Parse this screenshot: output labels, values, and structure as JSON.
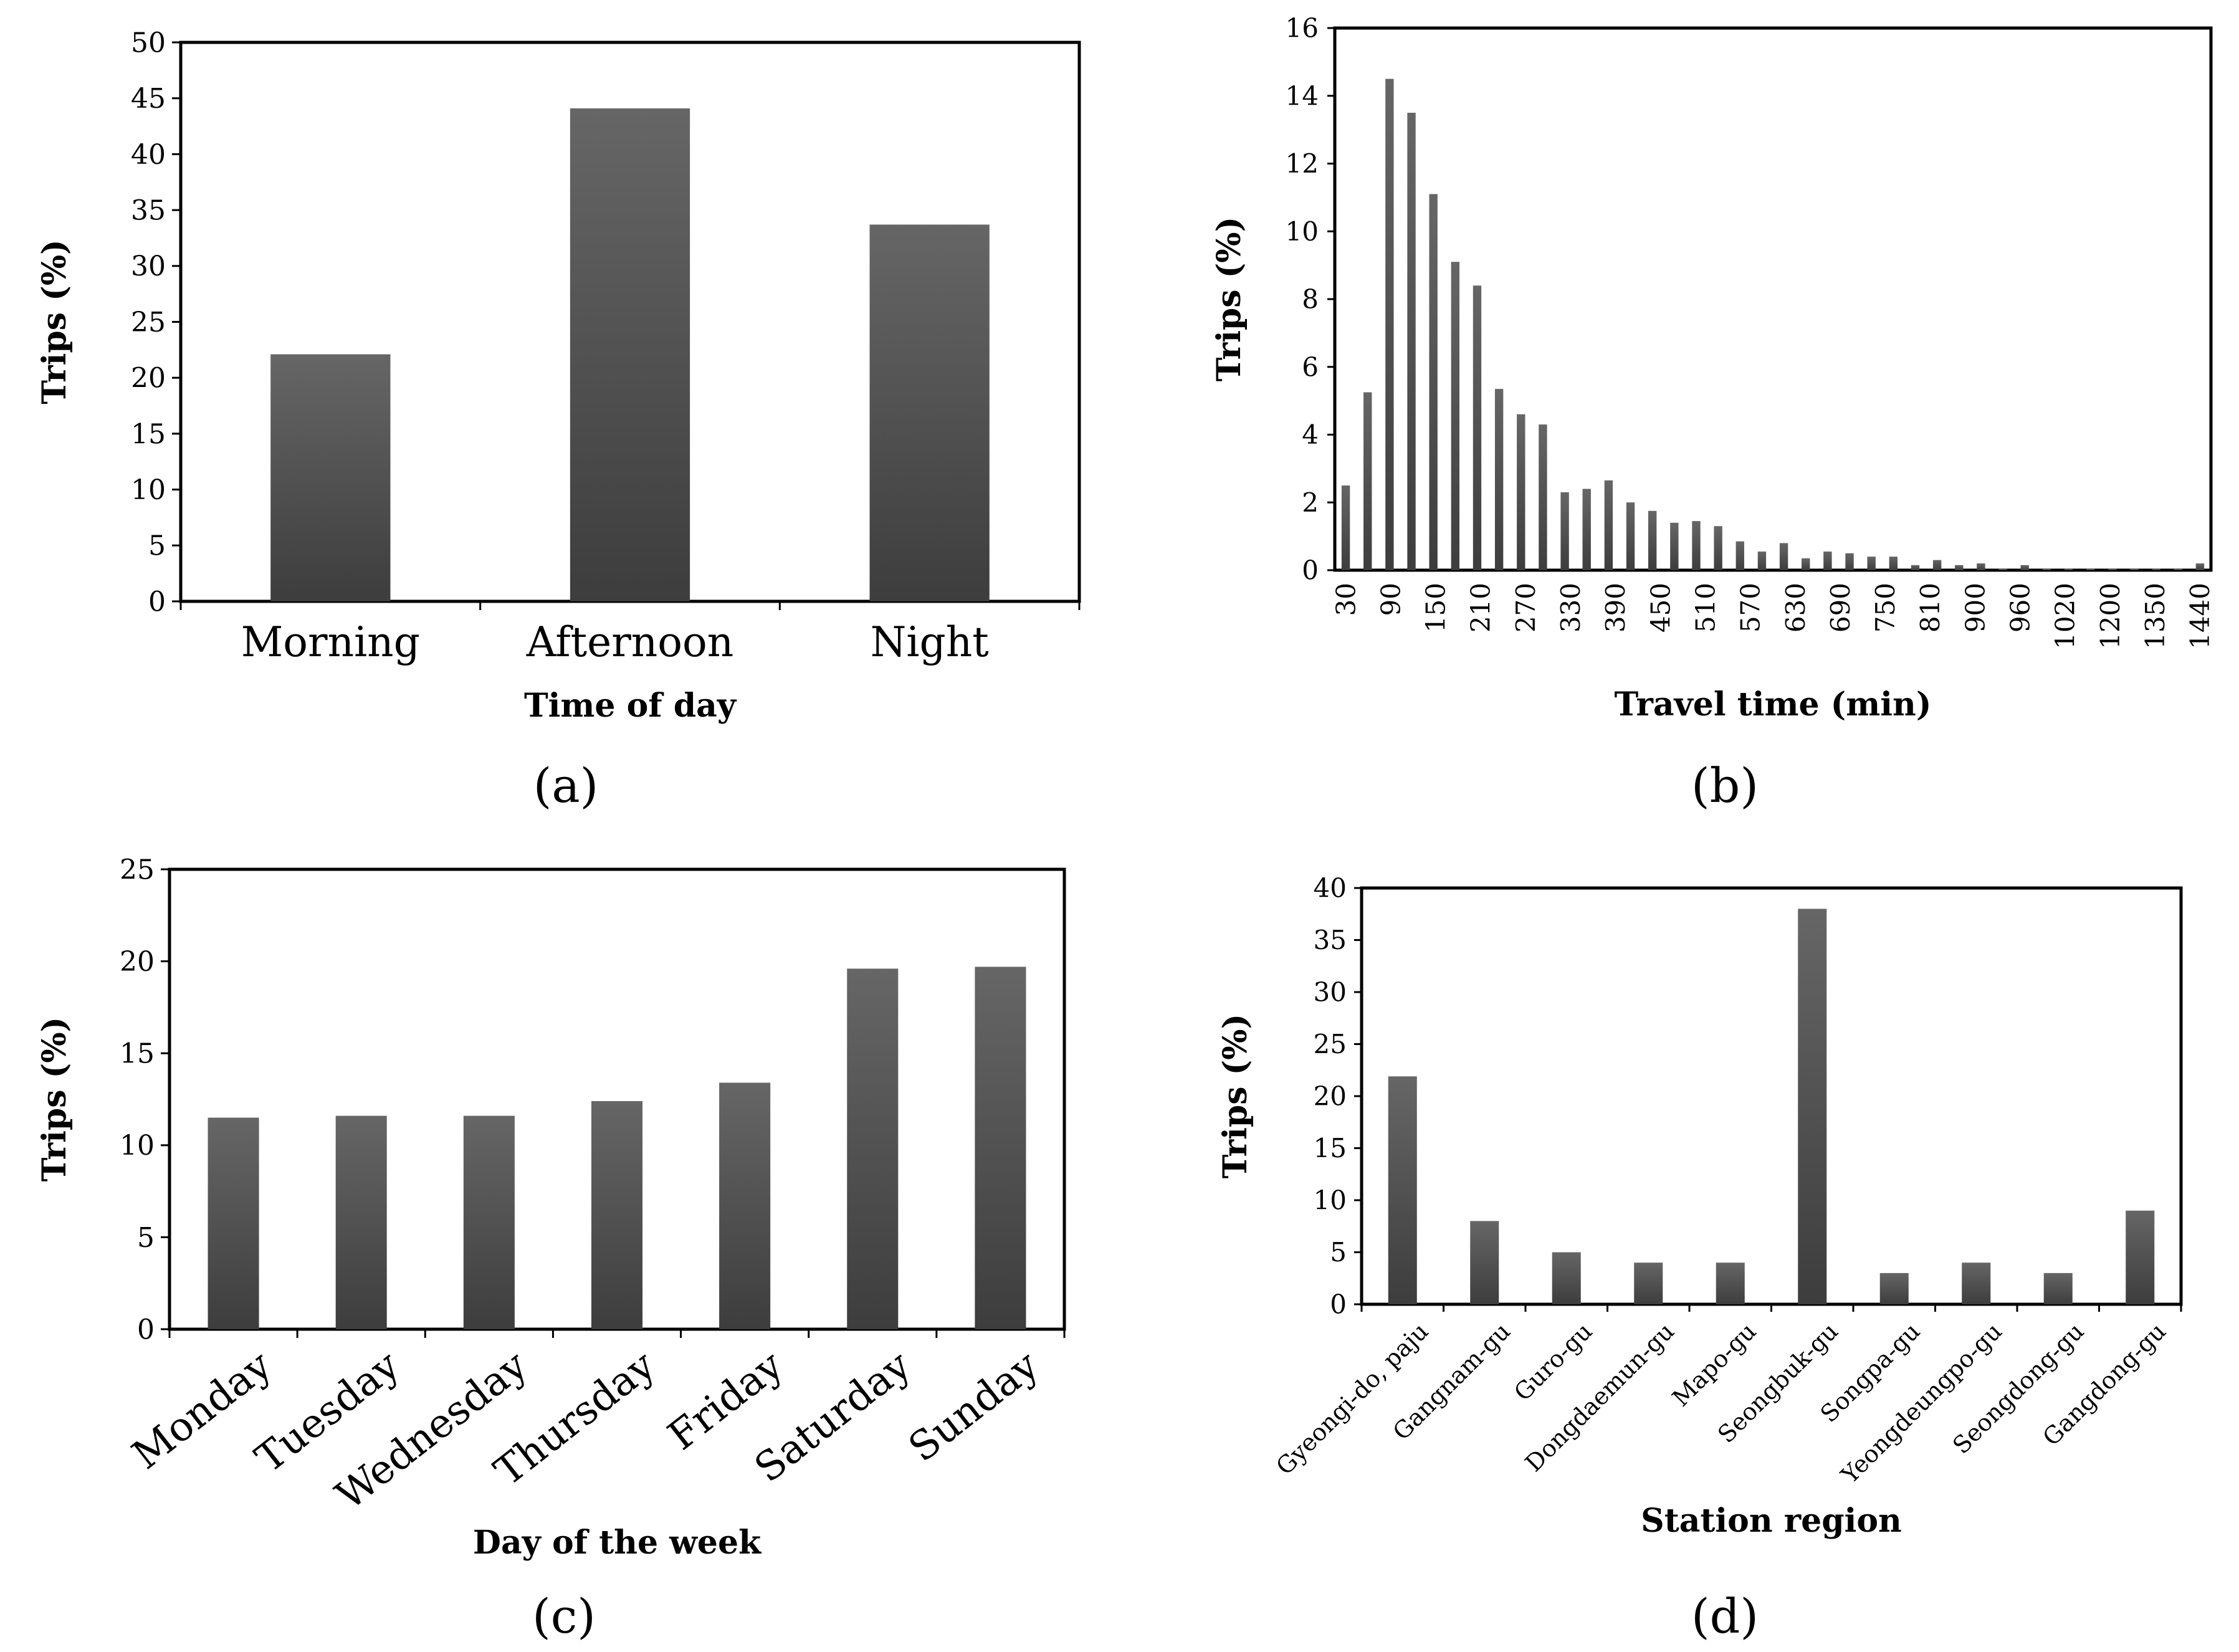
{
  "figure": {
    "chart_a_caption": "(a)",
    "chart_b_caption": "(b)",
    "chart_c_caption": "(c)",
    "chart_d_caption": "(d)"
  },
  "colors": {
    "bar": "#4d4d4d",
    "bar_top": "#636363",
    "bar_bottom": "#3f3f3f",
    "frame": "#000000"
  },
  "chart_data": [
    {
      "id": "a",
      "type": "bar",
      "caption": "(a)",
      "xlabel": "Time of day",
      "ylabel": "Trips (%)",
      "ylim": [
        0,
        50
      ],
      "yticks": [
        0,
        5,
        10,
        15,
        20,
        25,
        30,
        35,
        40,
        45,
        50
      ],
      "categories": [
        "Morning",
        "Afternoon",
        "Night"
      ],
      "values": [
        22.1,
        44.1,
        33.7
      ],
      "grid": false,
      "legend": "none"
    },
    {
      "id": "b",
      "type": "bar",
      "caption": "(b)",
      "xlabel": "Travel time (min)",
      "ylabel": "Trips (%)",
      "ylim": [
        0,
        16
      ],
      "yticks": [
        0,
        2,
        4,
        6,
        8,
        10,
        12,
        14,
        16
      ],
      "x_tick_labels": [
        "30",
        "90",
        "150",
        "210",
        "270",
        "330",
        "390",
        "450",
        "510",
        "570",
        "630",
        "690",
        "750",
        "810",
        "900",
        "960",
        "1020",
        "1200",
        "1350",
        "1440"
      ],
      "values": [
        2.5,
        5.25,
        14.5,
        13.5,
        11.1,
        9.1,
        8.4,
        5.35,
        4.6,
        4.3,
        2.3,
        2.4,
        2.65,
        2.0,
        1.75,
        1.4,
        1.45,
        1.3,
        0.85,
        0.55,
        0.8,
        0.35,
        0.55,
        0.5,
        0.4,
        0.4,
        0.15,
        0.3,
        0.15,
        0.2,
        0.05,
        0.15,
        0.05,
        0.05,
        0.05,
        0.05,
        0.05,
        0.05,
        0.05,
        0.2
      ],
      "grid": false,
      "legend": "none"
    },
    {
      "id": "c",
      "type": "bar",
      "caption": "(c)",
      "xlabel": "Day of the week",
      "ylabel": "Trips (%)",
      "ylim": [
        0,
        25
      ],
      "yticks": [
        0,
        5,
        10,
        15,
        20,
        25
      ],
      "categories": [
        "Monday",
        "Tuesday",
        "Wednesday",
        "Thursday",
        "Friday",
        "Saturday",
        "Sunday"
      ],
      "values": [
        11.5,
        11.6,
        11.6,
        12.4,
        13.4,
        19.6,
        19.7
      ],
      "grid": false,
      "legend": "none"
    },
    {
      "id": "d",
      "type": "bar",
      "caption": "(d)",
      "xlabel": "Station region",
      "ylabel": "Trips (%)",
      "ylim": [
        0,
        40
      ],
      "yticks": [
        0,
        5,
        10,
        15,
        20,
        25,
        30,
        35,
        40
      ],
      "categories": [
        "Gyeongi-do, paju",
        "Gangnam-gu",
        "Guro-gu",
        "Dongdaemun-gu",
        "Mapo-gu",
        "Seongbuk-gu",
        "Songpa-gu",
        "Yeongdeungpo-gu",
        "Seongdong-gu",
        "Gangdong-gu"
      ],
      "values": [
        21.9,
        8,
        5,
        4,
        4,
        38,
        3,
        4,
        3,
        9
      ],
      "grid": false,
      "legend": "none"
    }
  ]
}
